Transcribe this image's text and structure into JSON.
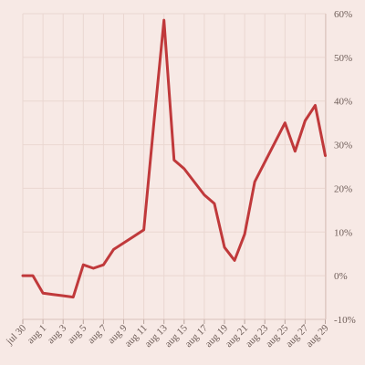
{
  "colors": {
    "background": "#f7e9e5",
    "series": "#c0393b"
  },
  "chart_data": {
    "type": "line",
    "title": "",
    "xlabel": "",
    "ylabel": "",
    "ylim": [
      -10,
      60
    ],
    "y_ticks": [
      -10,
      0,
      10,
      20,
      30,
      40,
      50,
      60
    ],
    "y_tick_labels": [
      "-10%",
      "0%",
      "10%",
      "20%",
      "30%",
      "40%",
      "50%",
      "60%"
    ],
    "x_tick_labels": [
      "jul 30",
      "aug 1",
      "aug 3",
      "aug 5",
      "aug 7",
      "aug 9",
      "aug 11",
      "aug 13",
      "aug 15",
      "aug 17",
      "aug 19",
      "aug 21",
      "aug 23",
      "aug 25",
      "aug 27",
      "aug 29"
    ],
    "grid": true,
    "y_axis_position": "right",
    "series": [
      {
        "x": [
          "2015-07-30",
          "2015-07-31",
          "2015-08-01",
          "2015-08-02",
          "2015-08-03",
          "2015-08-04",
          "2015-08-05",
          "2015-08-06",
          "2015-08-07",
          "2015-08-08",
          "2015-08-09",
          "2015-08-10",
          "2015-08-11",
          "2015-08-12",
          "2015-08-13",
          "2015-08-14",
          "2015-08-15",
          "2015-08-16",
          "2015-08-17",
          "2015-08-18",
          "2015-08-19",
          "2015-08-20",
          "2015-08-21",
          "2015-08-22",
          "2015-08-23",
          "2015-08-24",
          "2015-08-25",
          "2015-08-26",
          "2015-08-27",
          "2015-08-28",
          "2015-08-29"
        ],
        "values": [
          0.0,
          0.0,
          -4.0,
          -4.3,
          -4.6,
          -4.9,
          2.5,
          1.7,
          2.5,
          6.0,
          7.5,
          9.0,
          10.5,
          35.0,
          58.5,
          26.5,
          24.5,
          21.5,
          18.5,
          16.5,
          6.5,
          3.5,
          9.5,
          21.5,
          26.0,
          30.5,
          35.0,
          28.5,
          35.5,
          39.0,
          27.5
        ]
      }
    ]
  }
}
